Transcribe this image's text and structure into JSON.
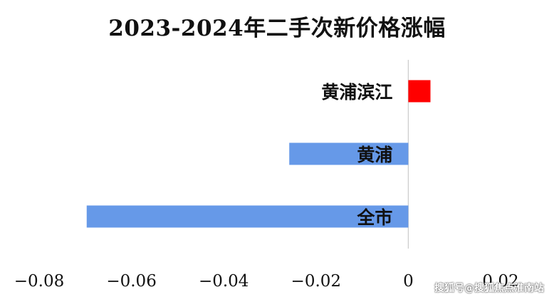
{
  "chart_data": {
    "type": "bar",
    "orientation": "horizontal",
    "title": "2023-2024年二手次新价格涨幅",
    "categories": [
      "黄浦滨江",
      "黄浦",
      "全市"
    ],
    "values": [
      0.0048,
      -0.0258,
      -0.0697
    ],
    "bar_colors": [
      "#ff0000",
      "#6699e8",
      "#6699e8"
    ],
    "xlim": [
      -0.08,
      0.02
    ],
    "xticks": [
      "-0.08",
      "-0.06",
      "-0.04",
      "-0.02",
      "0",
      "0.02"
    ],
    "xlabel": "",
    "ylabel": "",
    "grid": false,
    "legend": "none"
  },
  "watermark": "搜狐号@搜狐焦点淮南站"
}
